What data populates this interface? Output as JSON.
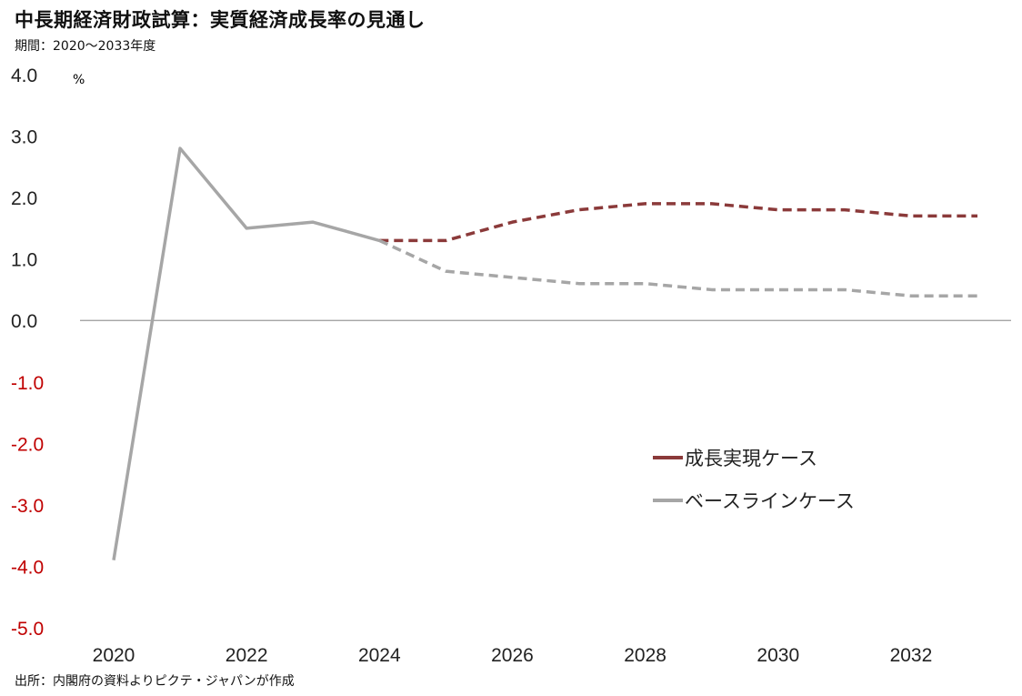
{
  "header": {
    "title": "中長期経済財政試算：実質経済成長率の見通し",
    "subtitle": "期間：2020～2033年度"
  },
  "footer": {
    "source": "出所：内閣府の資料よりピクテ・ジャパンが作成"
  },
  "colors": {
    "growth": "#8b3a3a",
    "baseline": "#a6a6a6",
    "negative_tick": "#c00000",
    "axis": "#9a9a9a"
  },
  "chart_data": {
    "type": "line",
    "unit_label": "%",
    "x": [
      2020,
      2021,
      2022,
      2023,
      2024,
      2025,
      2026,
      2027,
      2028,
      2029,
      2030,
      2031,
      2032,
      2033
    ],
    "x_tick_labels": [
      "2020",
      "2022",
      "2024",
      "2026",
      "2028",
      "2030",
      "2032"
    ],
    "y_tick_labels": [
      "4.0",
      "3.0",
      "2.0",
      "1.0",
      "0.0",
      "-1.0",
      "-2.0",
      "-3.0",
      "-4.0",
      "-5.0"
    ],
    "ylim": [
      -5.0,
      4.0
    ],
    "series": [
      {
        "name": "成長実現ケース",
        "style": "dashed",
        "color": "#8b3a3a",
        "x": [
          2024,
          2025,
          2026,
          2027,
          2028,
          2029,
          2030,
          2031,
          2032,
          2033
        ],
        "values": [
          1.3,
          1.3,
          1.6,
          1.8,
          1.9,
          1.9,
          1.8,
          1.8,
          1.7,
          1.7
        ]
      },
      {
        "name": "ベースラインケース",
        "style": "solid-then-dashed",
        "solid_until": 2024,
        "color": "#a6a6a6",
        "x": [
          2020,
          2021,
          2022,
          2023,
          2024,
          2025,
          2026,
          2027,
          2028,
          2029,
          2030,
          2031,
          2032,
          2033
        ],
        "values": [
          -3.9,
          2.8,
          1.5,
          1.6,
          1.3,
          0.8,
          0.7,
          0.6,
          0.6,
          0.5,
          0.5,
          0.5,
          0.4,
          0.4
        ]
      }
    ],
    "legend": {
      "placement": "lower-right",
      "items": [
        "成長実現ケース",
        "ベースラインケース"
      ]
    }
  }
}
